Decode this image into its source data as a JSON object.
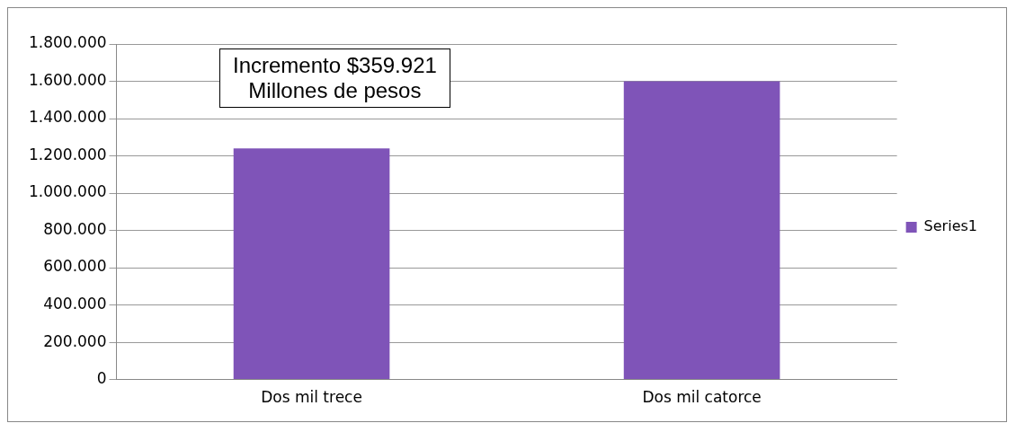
{
  "chart_data": {
    "type": "bar",
    "categories": [
      "Dos mil trece",
      "Dos mil catorce"
    ],
    "series": [
      {
        "name": "Series1",
        "color": "#7f54b8",
        "values": [
          1240000,
          1600000
        ]
      }
    ],
    "ylim": [
      0,
      1800000
    ],
    "yticks": [
      {
        "value": 0,
        "label": "0"
      },
      {
        "value": 200000,
        "label": "200.000"
      },
      {
        "value": 400000,
        "label": "400.000"
      },
      {
        "value": 600000,
        "label": "600.000"
      },
      {
        "value": 800000,
        "label": "800.000"
      },
      {
        "value": 1000000,
        "label": "1.000.000"
      },
      {
        "value": 1200000,
        "label": "1.200.000"
      },
      {
        "value": 1400000,
        "label": "1.400.000"
      },
      {
        "value": 1600000,
        "label": "1.600.000"
      },
      {
        "value": 1800000,
        "label": "1.800.000"
      }
    ],
    "grid": "y",
    "legend": "right",
    "annotations": [
      "Incremento $359.921\nMillones de pesos"
    ]
  }
}
